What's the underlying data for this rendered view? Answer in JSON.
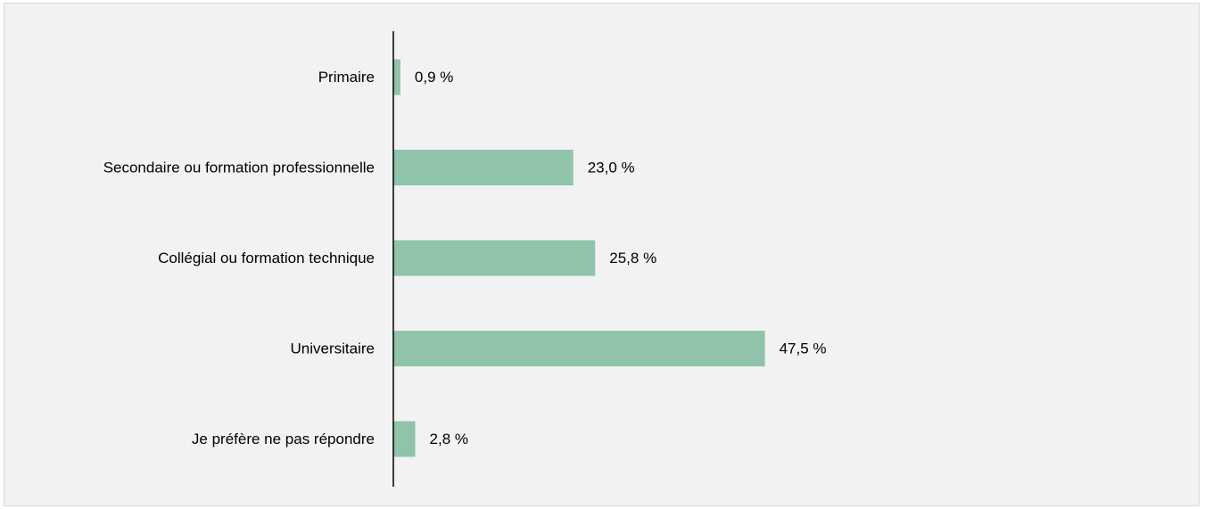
{
  "chart_data": {
    "type": "bar",
    "orientation": "horizontal",
    "categories": [
      "Primaire",
      "Secondaire ou formation professionnelle",
      "Collégial ou formation technique",
      "Universitaire",
      "Je préfère ne pas répondre"
    ],
    "values": [
      0.9,
      23.0,
      25.8,
      47.5,
      2.8
    ],
    "value_labels": [
      "0,9 %",
      "23,0 %",
      "25,8 %",
      "47,5 %",
      "2,8 %"
    ],
    "unit": "%",
    "xlim": [
      0,
      55
    ],
    "grid": false,
    "legend": "none",
    "bar_color": "#8fc4aa",
    "axis_color": "#000000",
    "background_color": "#f2f2f2"
  }
}
